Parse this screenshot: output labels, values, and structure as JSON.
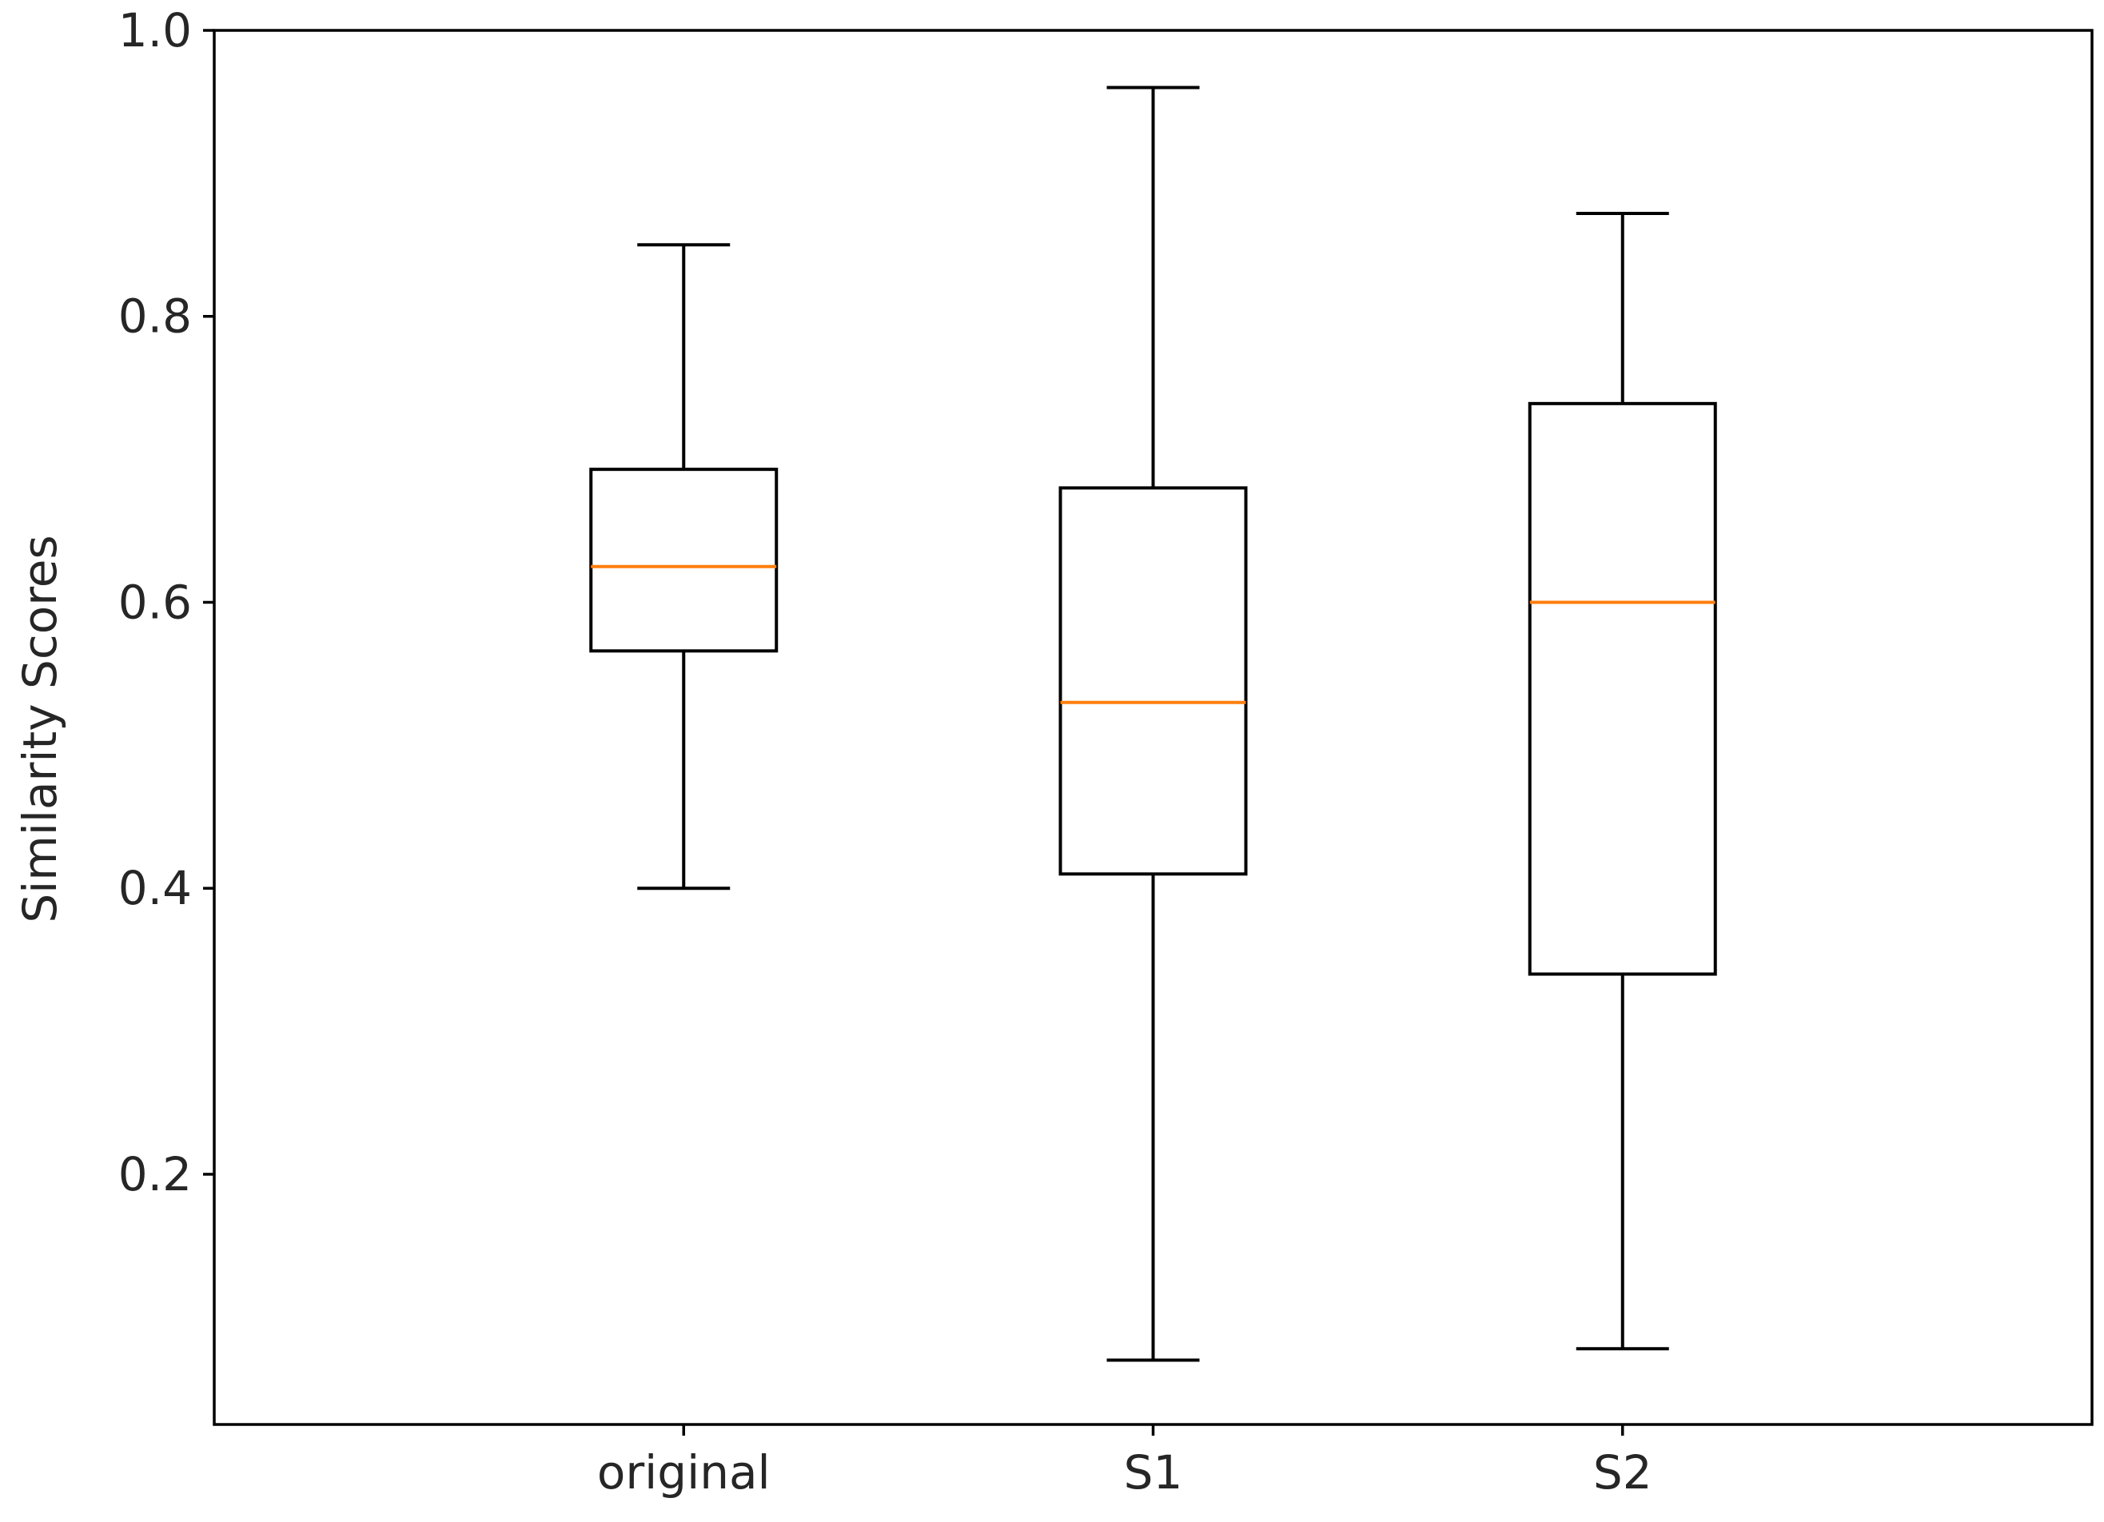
{
  "chart_data": {
    "type": "box",
    "ylabel": "Similarity Scores",
    "xlabel": "",
    "title": "",
    "categories": [
      "original",
      "S1",
      "S2"
    ],
    "boxes": [
      {
        "label": "original",
        "whisker_low": 0.4,
        "q1": 0.566,
        "median": 0.625,
        "q3": 0.693,
        "whisker_high": 0.85
      },
      {
        "label": "S1",
        "whisker_low": 0.07,
        "q1": 0.41,
        "median": 0.53,
        "q3": 0.68,
        "whisker_high": 0.96
      },
      {
        "label": "S2",
        "whisker_low": 0.078,
        "q1": 0.34,
        "median": 0.6,
        "q3": 0.739,
        "whisker_high": 0.872
      }
    ],
    "ylim": [
      0.025,
      1.0
    ],
    "yticks": [
      0.2,
      0.4,
      0.6,
      0.8,
      1.0
    ],
    "ytick_labels": [
      "0.2",
      "0.4",
      "0.6",
      "0.8",
      "1.0"
    ],
    "grid": false,
    "colors": {
      "box": "#000000",
      "median": "#ff7f0e"
    }
  }
}
